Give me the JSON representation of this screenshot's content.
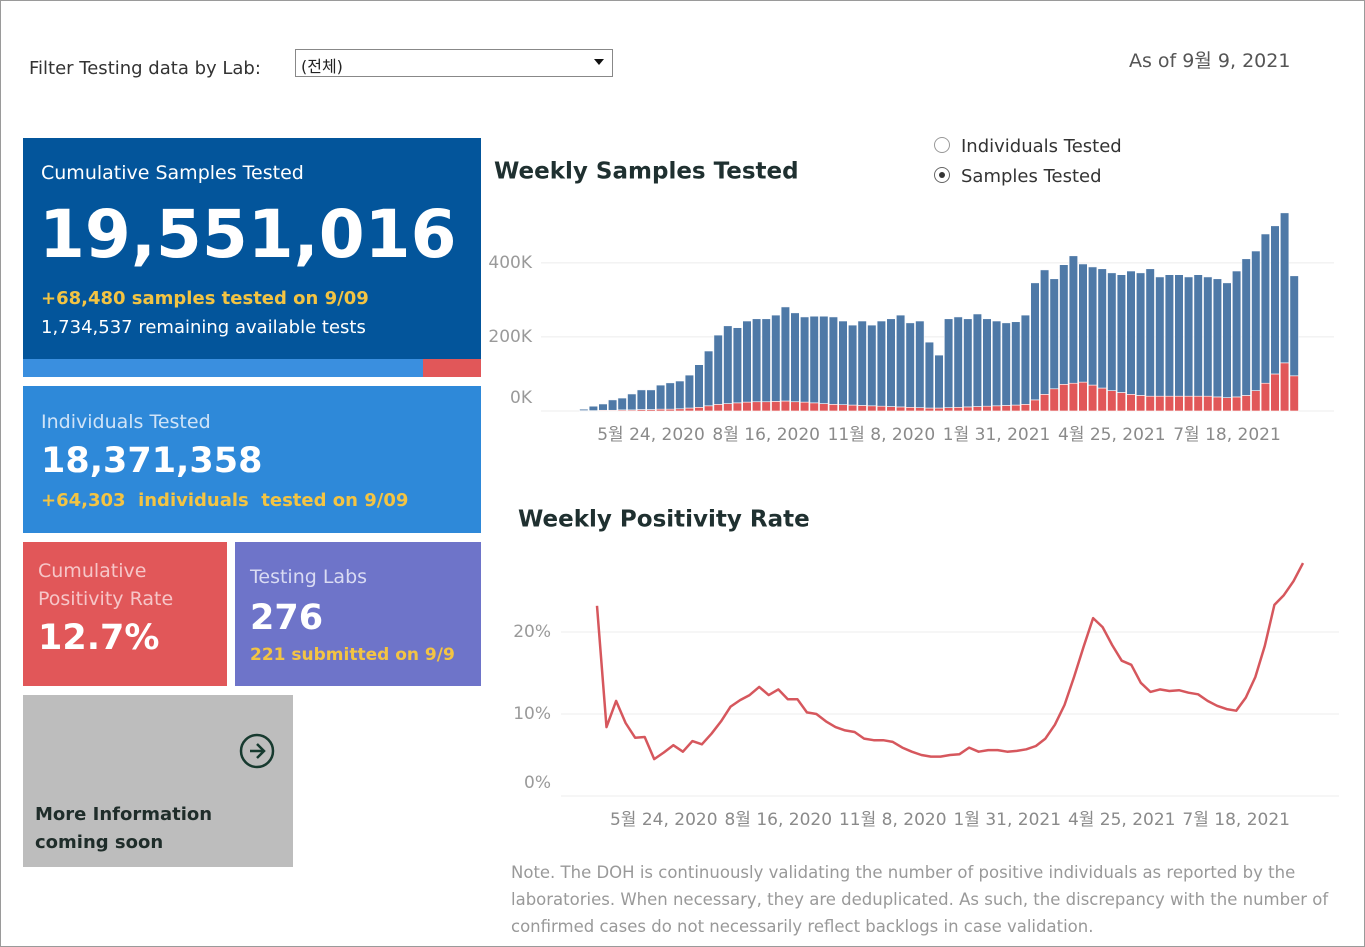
{
  "filter": {
    "label": "Filter Testing data by Lab:",
    "selected": "(전체)"
  },
  "as_of": "As of 9월 9, 2021",
  "toggle": {
    "options": [
      "Individuals Tested",
      "Samples Tested"
    ],
    "selected": 1
  },
  "cards": {
    "samples": {
      "title": "Cumulative Samples Tested",
      "value": "19,551,016",
      "delta": "+68,480 samples tested on 9/09",
      "remaining": "1,734,537 remaining available tests"
    },
    "individuals": {
      "title": "Individuals Tested",
      "value": "18,371,358",
      "delta": "+64,303  individuals  tested on 9/09"
    },
    "positivity": {
      "title": "Cumulative Positivity Rate",
      "value": "12.7%"
    },
    "labs": {
      "title": "Testing Labs",
      "value": "276",
      "delta": "221 submitted on 9/9"
    },
    "more": {
      "title": "More Information coming soon"
    }
  },
  "note": "Note. The DOH is continuously validating the number of positive individuals as reported by the laboratories. When necessary, they are deduplicated. As such, the discrepancy with the number of confirmed cases do not necessarily reflect backlogs in case validation.",
  "chart_data": [
    {
      "type": "bar",
      "stacked": true,
      "title": "Weekly Samples Tested",
      "categories": [
        null,
        null,
        null,
        null,
        null,
        null,
        null,
        "5월 24, 2020",
        null,
        null,
        null,
        null,
        null,
        null,
        null,
        null,
        null,
        null,
        null,
        "8월 16, 2020",
        null,
        null,
        null,
        null,
        null,
        null,
        null,
        null,
        null,
        null,
        null,
        "11월 8, 2020",
        null,
        null,
        null,
        null,
        null,
        null,
        null,
        null,
        null,
        null,
        null,
        "1월 31, 2021",
        null,
        null,
        null,
        null,
        null,
        null,
        null,
        null,
        null,
        null,
        null,
        "4월 25, 2021",
        null,
        null,
        null,
        null,
        null,
        null,
        null,
        null,
        null,
        null,
        null,
        "7월 18, 2021",
        null,
        null,
        null,
        null,
        null,
        null,
        null
      ],
      "series": [
        {
          "color": "#e15759",
          "values": [
            1000,
            1000,
            2000,
            2000,
            3000,
            3000,
            4000,
            4000,
            5000,
            5000,
            6000,
            8000,
            10000,
            14000,
            18000,
            20000,
            22000,
            24000,
            25000,
            25000,
            26000,
            27000,
            25000,
            24000,
            22000,
            20000,
            18000,
            17000,
            16000,
            15000,
            14000,
            13000,
            12000,
            11000,
            10000,
            9000,
            8000,
            8000,
            9000,
            10000,
            11000,
            12000,
            13000,
            14000,
            15000,
            16000,
            18000,
            30000,
            45000,
            60000,
            72000,
            75000,
            78000,
            70000,
            62000,
            55000,
            50000,
            45000,
            42000,
            40000,
            40000,
            40000,
            40000,
            40000,
            40000,
            40000,
            38000,
            36000,
            38000,
            42000,
            55000,
            75000,
            100000,
            130000,
            95000
          ]
        },
        {
          "color": "#4e79a7",
          "values": [
            4000,
            12000,
            17000,
            28000,
            32000,
            43000,
            53000,
            53000,
            65000,
            71000,
            75000,
            89000,
            115000,
            148000,
            187000,
            210000,
            203000,
            219000,
            224000,
            224000,
            233000,
            254000,
            240000,
            230000,
            234000,
            236000,
            236000,
            226000,
            216000,
            228000,
            218000,
            230000,
            237000,
            248000,
            228000,
            234000,
            178000,
            143000,
            240000,
            244000,
            238000,
            250000,
            236000,
            229000,
            223000,
            225000,
            241000,
            316000,
            336000,
            297000,
            323000,
            344000,
            319000,
            319000,
            322000,
            318000,
            318000,
            333000,
            331000,
            344000,
            322000,
            328000,
            328000,
            322000,
            328000,
            322000,
            319000,
            310000,
            340000,
            369000,
            377000,
            403000,
            400000,
            405000,
            270000
          ]
        }
      ],
      "ylim": [
        0,
        540000
      ],
      "yticks": [
        {
          "value": 0,
          "label": "0K"
        },
        {
          "value": 200000,
          "label": "200K"
        },
        {
          "value": 400000,
          "label": "400K"
        }
      ],
      "grid": true
    },
    {
      "type": "line",
      "title": "Weekly Positivity Rate",
      "categories": [
        null,
        null,
        null,
        null,
        null,
        null,
        null,
        "5월 24, 2020",
        null,
        null,
        null,
        null,
        null,
        null,
        null,
        null,
        null,
        null,
        null,
        "8월 16, 2020",
        null,
        null,
        null,
        null,
        null,
        null,
        null,
        null,
        null,
        null,
        null,
        "11월 8, 2020",
        null,
        null,
        null,
        null,
        null,
        null,
        null,
        null,
        null,
        null,
        null,
        "1월 31, 2021",
        null,
        null,
        null,
        null,
        null,
        null,
        null,
        null,
        null,
        null,
        null,
        "4월 25, 2021",
        null,
        null,
        null,
        null,
        null,
        null,
        null,
        null,
        null,
        null,
        null,
        "7월 18, 2021",
        null,
        null,
        null,
        null,
        null,
        null,
        null
      ],
      "color": "#d6575d",
      "values": [
        23.2,
        8.4,
        11.6,
        8.9,
        7.1,
        7.2,
        4.5,
        5.3,
        6.2,
        5.4,
        6.7,
        6.3,
        7.6,
        9.1,
        10.9,
        11.7,
        12.3,
        13.3,
        12.3,
        13.0,
        11.8,
        11.8,
        10.2,
        10.0,
        9.1,
        8.4,
        8.0,
        7.8,
        7.0,
        6.8,
        6.8,
        6.6,
        5.9,
        5.4,
        5.0,
        4.8,
        4.8,
        5.0,
        5.1,
        5.9,
        5.4,
        5.6,
        5.6,
        5.4,
        5.5,
        5.7,
        6.1,
        7.0,
        8.7,
        11.1,
        14.5,
        18.2,
        21.7,
        20.6,
        18.4,
        16.5,
        16.0,
        13.8,
        12.7,
        13.0,
        12.8,
        12.9,
        12.6,
        12.4,
        11.6,
        11.0,
        10.6,
        10.4,
        12.0,
        14.5,
        18.3,
        23.3,
        24.5,
        26.2,
        28.4
      ],
      "ylim": [
        0,
        30
      ],
      "yticks": [
        {
          "value": 0,
          "label": "0%"
        },
        {
          "value": 10,
          "label": "10%"
        },
        {
          "value": 20,
          "label": "20%"
        }
      ],
      "grid": true
    }
  ]
}
